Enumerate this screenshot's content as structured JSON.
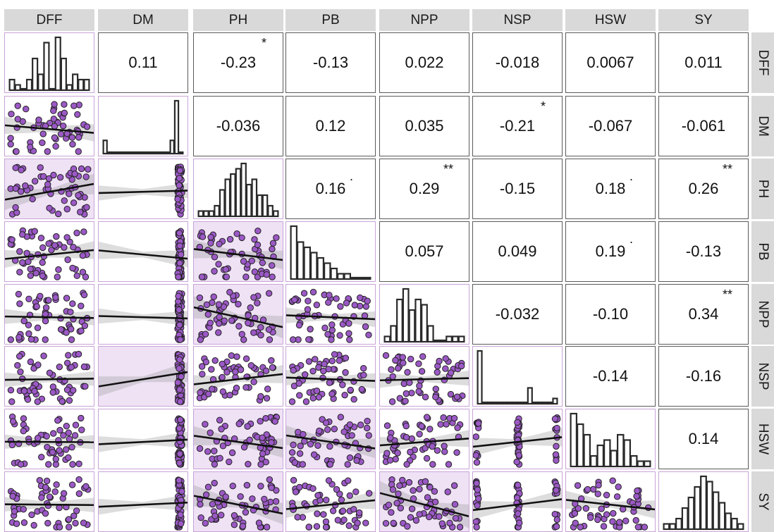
{
  "chart_data": {
    "type": "scatter",
    "subtype": "correlation-matrix",
    "variables": [
      "DFF",
      "DM",
      "PH",
      "PB",
      "NPP",
      "NSP",
      "HSW",
      "SY"
    ],
    "upper": [
      {
        "row": "DFF",
        "col": "DM",
        "r": "0.11",
        "sig": ""
      },
      {
        "row": "DFF",
        "col": "PH",
        "r": "-0.23",
        "sig": "*"
      },
      {
        "row": "DFF",
        "col": "PB",
        "r": "-0.13",
        "sig": ""
      },
      {
        "row": "DFF",
        "col": "NPP",
        "r": "0.022",
        "sig": ""
      },
      {
        "row": "DFF",
        "col": "NSP",
        "r": "-0.018",
        "sig": ""
      },
      {
        "row": "DFF",
        "col": "HSW",
        "r": "0.0067",
        "sig": ""
      },
      {
        "row": "DFF",
        "col": "SY",
        "r": "0.011",
        "sig": ""
      },
      {
        "row": "DM",
        "col": "PH",
        "r": "-0.036",
        "sig": ""
      },
      {
        "row": "DM",
        "col": "PB",
        "r": "0.12",
        "sig": ""
      },
      {
        "row": "DM",
        "col": "NPP",
        "r": "0.035",
        "sig": ""
      },
      {
        "row": "DM",
        "col": "NSP",
        "r": "-0.21",
        "sig": "*"
      },
      {
        "row": "DM",
        "col": "HSW",
        "r": "-0.067",
        "sig": ""
      },
      {
        "row": "DM",
        "col": "SY",
        "r": "-0.061",
        "sig": ""
      },
      {
        "row": "PH",
        "col": "PB",
        "r": "0.16",
        "sig": "."
      },
      {
        "row": "PH",
        "col": "NPP",
        "r": "0.29",
        "sig": "**"
      },
      {
        "row": "PH",
        "col": "NSP",
        "r": "-0.15",
        "sig": ""
      },
      {
        "row": "PH",
        "col": "HSW",
        "r": "0.18",
        "sig": "."
      },
      {
        "row": "PH",
        "col": "SY",
        "r": "0.26",
        "sig": "**"
      },
      {
        "row": "PB",
        "col": "NPP",
        "r": "0.057",
        "sig": ""
      },
      {
        "row": "PB",
        "col": "NSP",
        "r": "0.049",
        "sig": ""
      },
      {
        "row": "PB",
        "col": "HSW",
        "r": "0.19",
        "sig": "."
      },
      {
        "row": "PB",
        "col": "SY",
        "r": "-0.13",
        "sig": ""
      },
      {
        "row": "NPP",
        "col": "NSP",
        "r": "-0.032",
        "sig": ""
      },
      {
        "row": "NPP",
        "col": "HSW",
        "r": "-0.10",
        "sig": ""
      },
      {
        "row": "NPP",
        "col": "SY",
        "r": "0.34",
        "sig": "**"
      },
      {
        "row": "NSP",
        "col": "HSW",
        "r": "-0.14",
        "sig": ""
      },
      {
        "row": "NSP",
        "col": "SY",
        "r": "-0.16",
        "sig": ""
      },
      {
        "row": "HSW",
        "col": "SY",
        "r": "0.14",
        "sig": ""
      }
    ],
    "diagonal_histograms": {
      "DFF": [
        2,
        1,
        0,
        2,
        6,
        3,
        9,
        0,
        10,
        6,
        1,
        3,
        2,
        2
      ],
      "DM": [
        1,
        0,
        0,
        0,
        0,
        0,
        0,
        0,
        0,
        0,
        0,
        0,
        0,
        0,
        0,
        1,
        4,
        0
      ],
      "PH": [
        1,
        1,
        1,
        2,
        5,
        7,
        8,
        9,
        10,
        6,
        7,
        4,
        4,
        2,
        1
      ],
      "PB": [
        10,
        7,
        6,
        5,
        4,
        3,
        2,
        1,
        1,
        0,
        0,
        0
      ],
      "NPP": [
        1,
        3,
        8,
        10,
        6,
        8,
        7,
        3,
        0,
        0,
        1,
        1,
        1
      ],
      "NSP": [
        10,
        0,
        0,
        0,
        0,
        0,
        0,
        0,
        0,
        0,
        3,
        0,
        0,
        0,
        0,
        1
      ],
      "HSW": [
        10,
        8,
        6,
        2,
        4,
        5,
        3,
        6,
        5,
        2,
        1,
        1
      ],
      "SY": [
        1,
        1,
        2,
        4,
        6,
        8,
        10,
        9,
        7,
        5,
        3,
        2,
        1
      ]
    },
    "lower_panels": "scatter with linear fit and confidence band",
    "point_color": "#9b59c5",
    "point_edge": "#222222",
    "bar_color": "#2a2a2a",
    "strip_color": "#d9d9d9",
    "panel_tint": "#efe2f5"
  }
}
